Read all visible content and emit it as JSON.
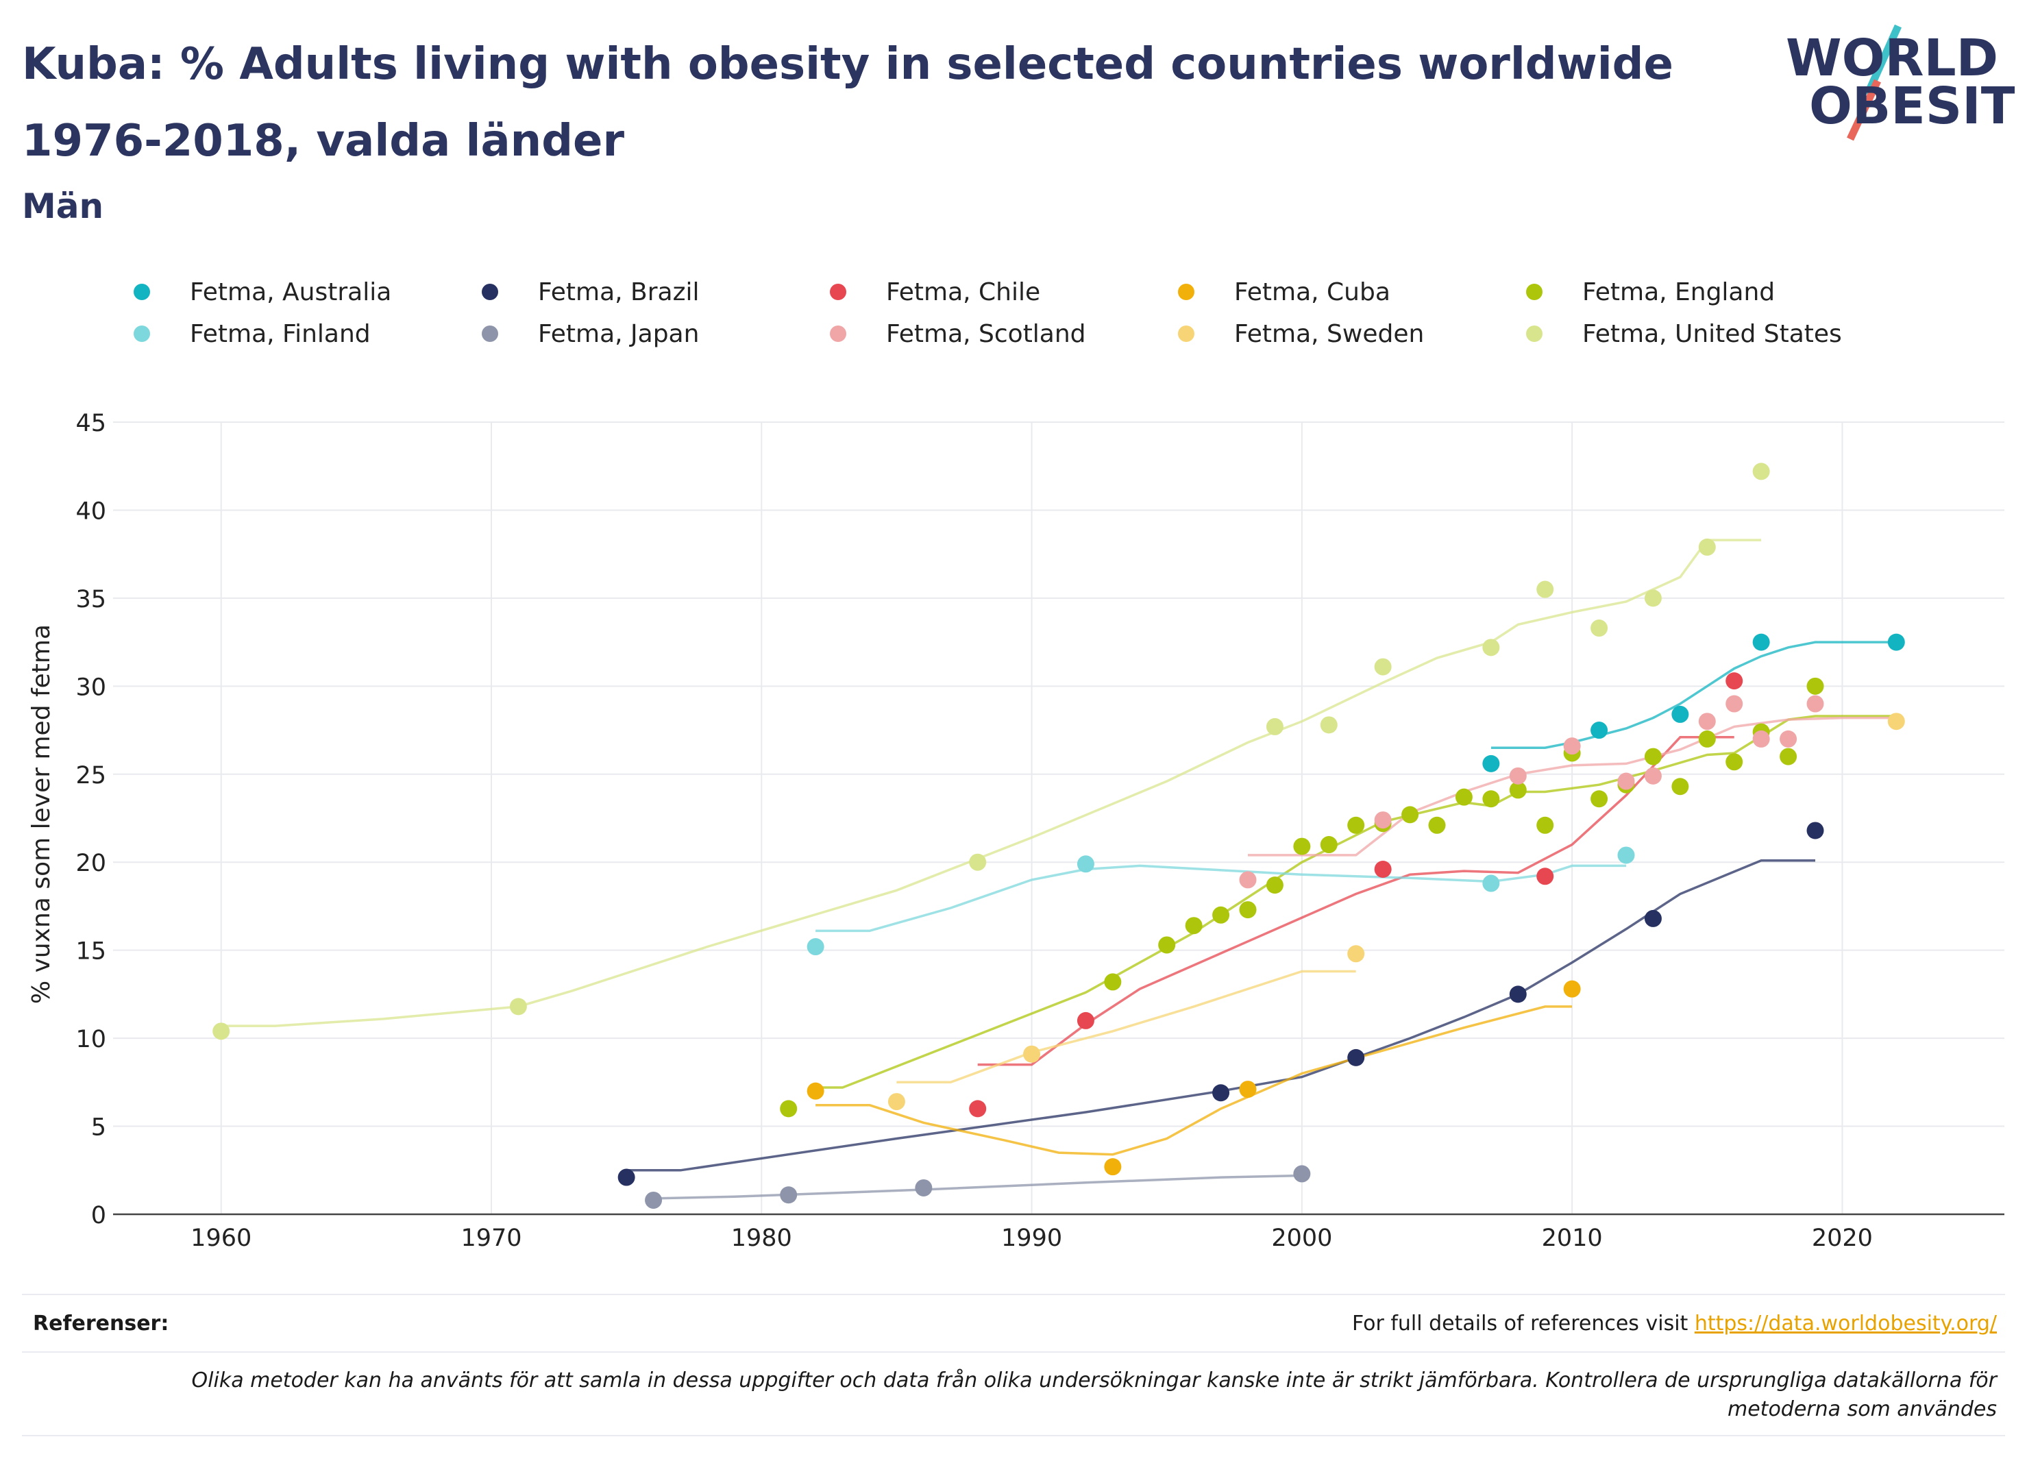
{
  "header": {
    "title": "Kuba: % Adults living with obesity in selected countries worldwide 1976-2018, valda länder",
    "subtitle": "Män",
    "logo_line1": "WORLD",
    "logo_line2": "OBESITY"
  },
  "footer": {
    "references_label": "Referenser:",
    "references_text": "For full details of references visit ",
    "references_link": "https://data.worldobesity.org/",
    "note": "Olika metoder kan ha använts för att samla in dessa uppgifter och data från olika undersökningar kanske inte är strikt jämförbara. Kontrollera de ursprungliga datakällorna för metoderna som användes"
  },
  "chart_data": {
    "type": "scatter",
    "ylabel": "%  vuxna som lever med fetma",
    "xlabel": "",
    "xlim": [
      1956,
      2026
    ],
    "ylim": [
      0,
      45
    ],
    "xticks": [
      1960,
      1970,
      1980,
      1990,
      2000,
      2010,
      2020
    ],
    "yticks": [
      0,
      5,
      10,
      15,
      20,
      25,
      30,
      35,
      40,
      45
    ],
    "grid": true,
    "legend_position": "top",
    "series": [
      {
        "name": "Fetma, Australia",
        "color": "#13b4c1",
        "points": [
          [
            2007,
            25.6
          ],
          [
            2011,
            27.5
          ],
          [
            2014,
            28.4
          ],
          [
            2017,
            32.5
          ],
          [
            2022,
            32.5
          ]
        ],
        "trend": [
          [
            2007,
            26.5
          ],
          [
            2009,
            26.5
          ],
          [
            2010,
            26.8
          ],
          [
            2011,
            27.2
          ],
          [
            2012,
            27.6
          ],
          [
            2013,
            28.2
          ],
          [
            2014,
            29.0
          ],
          [
            2015,
            30.0
          ],
          [
            2016,
            31.0
          ],
          [
            2017,
            31.7
          ],
          [
            2018,
            32.2
          ],
          [
            2019,
            32.5
          ],
          [
            2022,
            32.5
          ]
        ]
      },
      {
        "name": "Fetma, Brazil",
        "color": "#263162",
        "points": [
          [
            1975,
            2.1
          ],
          [
            1997,
            6.9
          ],
          [
            2002,
            8.9
          ],
          [
            2008,
            12.5
          ],
          [
            2013,
            16.8
          ],
          [
            2019,
            21.8
          ]
        ],
        "trend": [
          [
            1975,
            2.5
          ],
          [
            1977,
            2.5
          ],
          [
            1985,
            4.3
          ],
          [
            1992,
            5.8
          ],
          [
            1997,
            7.0
          ],
          [
            2000,
            7.8
          ],
          [
            2002,
            8.9
          ],
          [
            2004,
            10.0
          ],
          [
            2006,
            11.2
          ],
          [
            2008,
            12.5
          ],
          [
            2010,
            14.3
          ],
          [
            2012,
            16.2
          ],
          [
            2014,
            18.2
          ],
          [
            2017,
            20.1
          ],
          [
            2019,
            20.1
          ]
        ]
      },
      {
        "name": "Fetma, Chile",
        "color": "#e74750",
        "points": [
          [
            1988,
            6.0
          ],
          [
            1992,
            11.0
          ],
          [
            2003,
            19.6
          ],
          [
            2009,
            19.2
          ],
          [
            2016,
            30.3
          ]
        ],
        "trend": [
          [
            1988,
            8.5
          ],
          [
            1990,
            8.5
          ],
          [
            1992,
            10.8
          ],
          [
            1994,
            12.8
          ],
          [
            1998,
            15.5
          ],
          [
            2002,
            18.2
          ],
          [
            2004,
            19.3
          ],
          [
            2006,
            19.5
          ],
          [
            2008,
            19.4
          ],
          [
            2010,
            21.0
          ],
          [
            2012,
            23.8
          ],
          [
            2014,
            27.1
          ],
          [
            2016,
            27.1
          ]
        ]
      },
      {
        "name": "Fetma, Cuba",
        "color": "#f2b00a",
        "points": [
          [
            1982,
            7.0
          ],
          [
            1993,
            2.7
          ],
          [
            1998,
            7.1
          ],
          [
            2010,
            12.8
          ]
        ],
        "trend": [
          [
            1982,
            6.2
          ],
          [
            1984,
            6.2
          ],
          [
            1986,
            5.2
          ],
          [
            1989,
            4.2
          ],
          [
            1991,
            3.5
          ],
          [
            1993,
            3.4
          ],
          [
            1995,
            4.3
          ],
          [
            1997,
            6.0
          ],
          [
            2000,
            8.0
          ],
          [
            2003,
            9.3
          ],
          [
            2006,
            10.6
          ],
          [
            2009,
            11.8
          ],
          [
            2010,
            11.8
          ]
        ]
      },
      {
        "name": "Fetma, England",
        "color": "#adc60c",
        "points": [
          [
            1981,
            6.0
          ],
          [
            1993,
            13.2
          ],
          [
            1995,
            15.3
          ],
          [
            1996,
            16.4
          ],
          [
            1997,
            17.0
          ],
          [
            1998,
            17.3
          ],
          [
            1999,
            18.7
          ],
          [
            2000,
            20.9
          ],
          [
            2001,
            21.0
          ],
          [
            2002,
            22.1
          ],
          [
            2003,
            22.2
          ],
          [
            2004,
            22.7
          ],
          [
            2005,
            22.1
          ],
          [
            2006,
            23.7
          ],
          [
            2007,
            23.6
          ],
          [
            2008,
            24.1
          ],
          [
            2009,
            22.1
          ],
          [
            2010,
            26.2
          ],
          [
            2011,
            23.6
          ],
          [
            2012,
            24.4
          ],
          [
            2013,
            26.0
          ],
          [
            2014,
            24.3
          ],
          [
            2015,
            27.0
          ],
          [
            2016,
            25.7
          ],
          [
            2017,
            27.4
          ],
          [
            2018,
            26.0
          ],
          [
            2019,
            30.0
          ]
        ],
        "trend": [
          [
            1982,
            7.2
          ],
          [
            1983,
            7.2
          ],
          [
            1988,
            10.2
          ],
          [
            1992,
            12.6
          ],
          [
            1996,
            16.0
          ],
          [
            2000,
            20.0
          ],
          [
            2003,
            22.3
          ],
          [
            2006,
            23.4
          ],
          [
            2007,
            23.2
          ],
          [
            2008,
            24.0
          ],
          [
            2009,
            24.0
          ],
          [
            2011,
            24.4
          ],
          [
            2013,
            25.2
          ],
          [
            2015,
            26.1
          ],
          [
            2016,
            26.2
          ],
          [
            2018,
            28.1
          ],
          [
            2019,
            28.3
          ],
          [
            2022,
            28.3
          ]
        ]
      },
      {
        "name": "Fetma, Finland",
        "color": "#7dd8dd",
        "points": [
          [
            1982,
            15.2
          ],
          [
            1992,
            19.9
          ],
          [
            2007,
            18.8
          ],
          [
            2012,
            20.4
          ]
        ],
        "trend": [
          [
            1982,
            16.1
          ],
          [
            1984,
            16.1
          ],
          [
            1987,
            17.4
          ],
          [
            1990,
            19.0
          ],
          [
            1992,
            19.6
          ],
          [
            1994,
            19.8
          ],
          [
            2000,
            19.3
          ],
          [
            2004,
            19.1
          ],
          [
            2007,
            18.9
          ],
          [
            2009,
            19.3
          ],
          [
            2010,
            19.8
          ],
          [
            2012,
            19.8
          ]
        ]
      },
      {
        "name": "Fetma, Japan",
        "color": "#8e95ab",
        "points": [
          [
            1976,
            0.8
          ],
          [
            1981,
            1.1
          ],
          [
            1986,
            1.5
          ],
          [
            2000,
            2.3
          ]
        ],
        "trend": [
          [
            1976,
            0.9
          ],
          [
            1979,
            1.0
          ],
          [
            1986,
            1.4
          ],
          [
            1992,
            1.8
          ],
          [
            1997,
            2.1
          ],
          [
            2000,
            2.2
          ]
        ]
      },
      {
        "name": "Fetma, Scotland",
        "color": "#f0a6a6",
        "points": [
          [
            1998,
            19.0
          ],
          [
            2003,
            22.4
          ],
          [
            2008,
            24.9
          ],
          [
            2010,
            26.6
          ],
          [
            2012,
            24.6
          ],
          [
            2013,
            24.9
          ],
          [
            2015,
            28.0
          ],
          [
            2016,
            29.0
          ],
          [
            2017,
            27.0
          ],
          [
            2018,
            27.0
          ],
          [
            2019,
            29.0
          ]
        ],
        "trend": [
          [
            1998,
            20.4
          ],
          [
            2002,
            20.4
          ],
          [
            2004,
            22.8
          ],
          [
            2006,
            24.0
          ],
          [
            2008,
            25.0
          ],
          [
            2010,
            25.5
          ],
          [
            2012,
            25.6
          ],
          [
            2014,
            26.4
          ],
          [
            2016,
            27.7
          ],
          [
            2018,
            28.1
          ],
          [
            2020,
            28.2
          ],
          [
            2022,
            28.2
          ]
        ]
      },
      {
        "name": "Fetma, Sweden",
        "color": "#f7d577",
        "points": [
          [
            1985,
            6.4
          ],
          [
            1990,
            9.1
          ],
          [
            2002,
            14.8
          ],
          [
            2022,
            28.0
          ]
        ],
        "trend": [
          [
            1985,
            7.5
          ],
          [
            1987,
            7.5
          ],
          [
            1990,
            9.2
          ],
          [
            1993,
            10.4
          ],
          [
            1996,
            11.8
          ],
          [
            2000,
            13.8
          ],
          [
            2002,
            13.8
          ]
        ]
      },
      {
        "name": "Fetma, United States",
        "color": "#d9e58d",
        "points": [
          [
            1960,
            10.4
          ],
          [
            1971,
            11.8
          ],
          [
            1988,
            20.0
          ],
          [
            1999,
            27.7
          ],
          [
            2001,
            27.8
          ],
          [
            2003,
            31.1
          ],
          [
            2007,
            32.2
          ],
          [
            2009,
            35.5
          ],
          [
            2011,
            33.3
          ],
          [
            2013,
            35.0
          ],
          [
            2015,
            37.9
          ],
          [
            2017,
            42.2
          ]
        ],
        "trend": [
          [
            1960,
            10.7
          ],
          [
            1962,
            10.7
          ],
          [
            1966,
            11.1
          ],
          [
            1971,
            11.8
          ],
          [
            1973,
            12.7
          ],
          [
            1978,
            15.2
          ],
          [
            1985,
            18.4
          ],
          [
            1990,
            21.4
          ],
          [
            1995,
            24.6
          ],
          [
            1998,
            26.8
          ],
          [
            2000,
            28.0
          ],
          [
            2003,
            30.2
          ],
          [
            2005,
            31.6
          ],
          [
            2007,
            32.5
          ],
          [
            2008,
            33.5
          ],
          [
            2010,
            34.2
          ],
          [
            2012,
            34.8
          ],
          [
            2014,
            36.2
          ],
          [
            2015,
            38.3
          ],
          [
            2017,
            38.3
          ]
        ]
      }
    ]
  }
}
